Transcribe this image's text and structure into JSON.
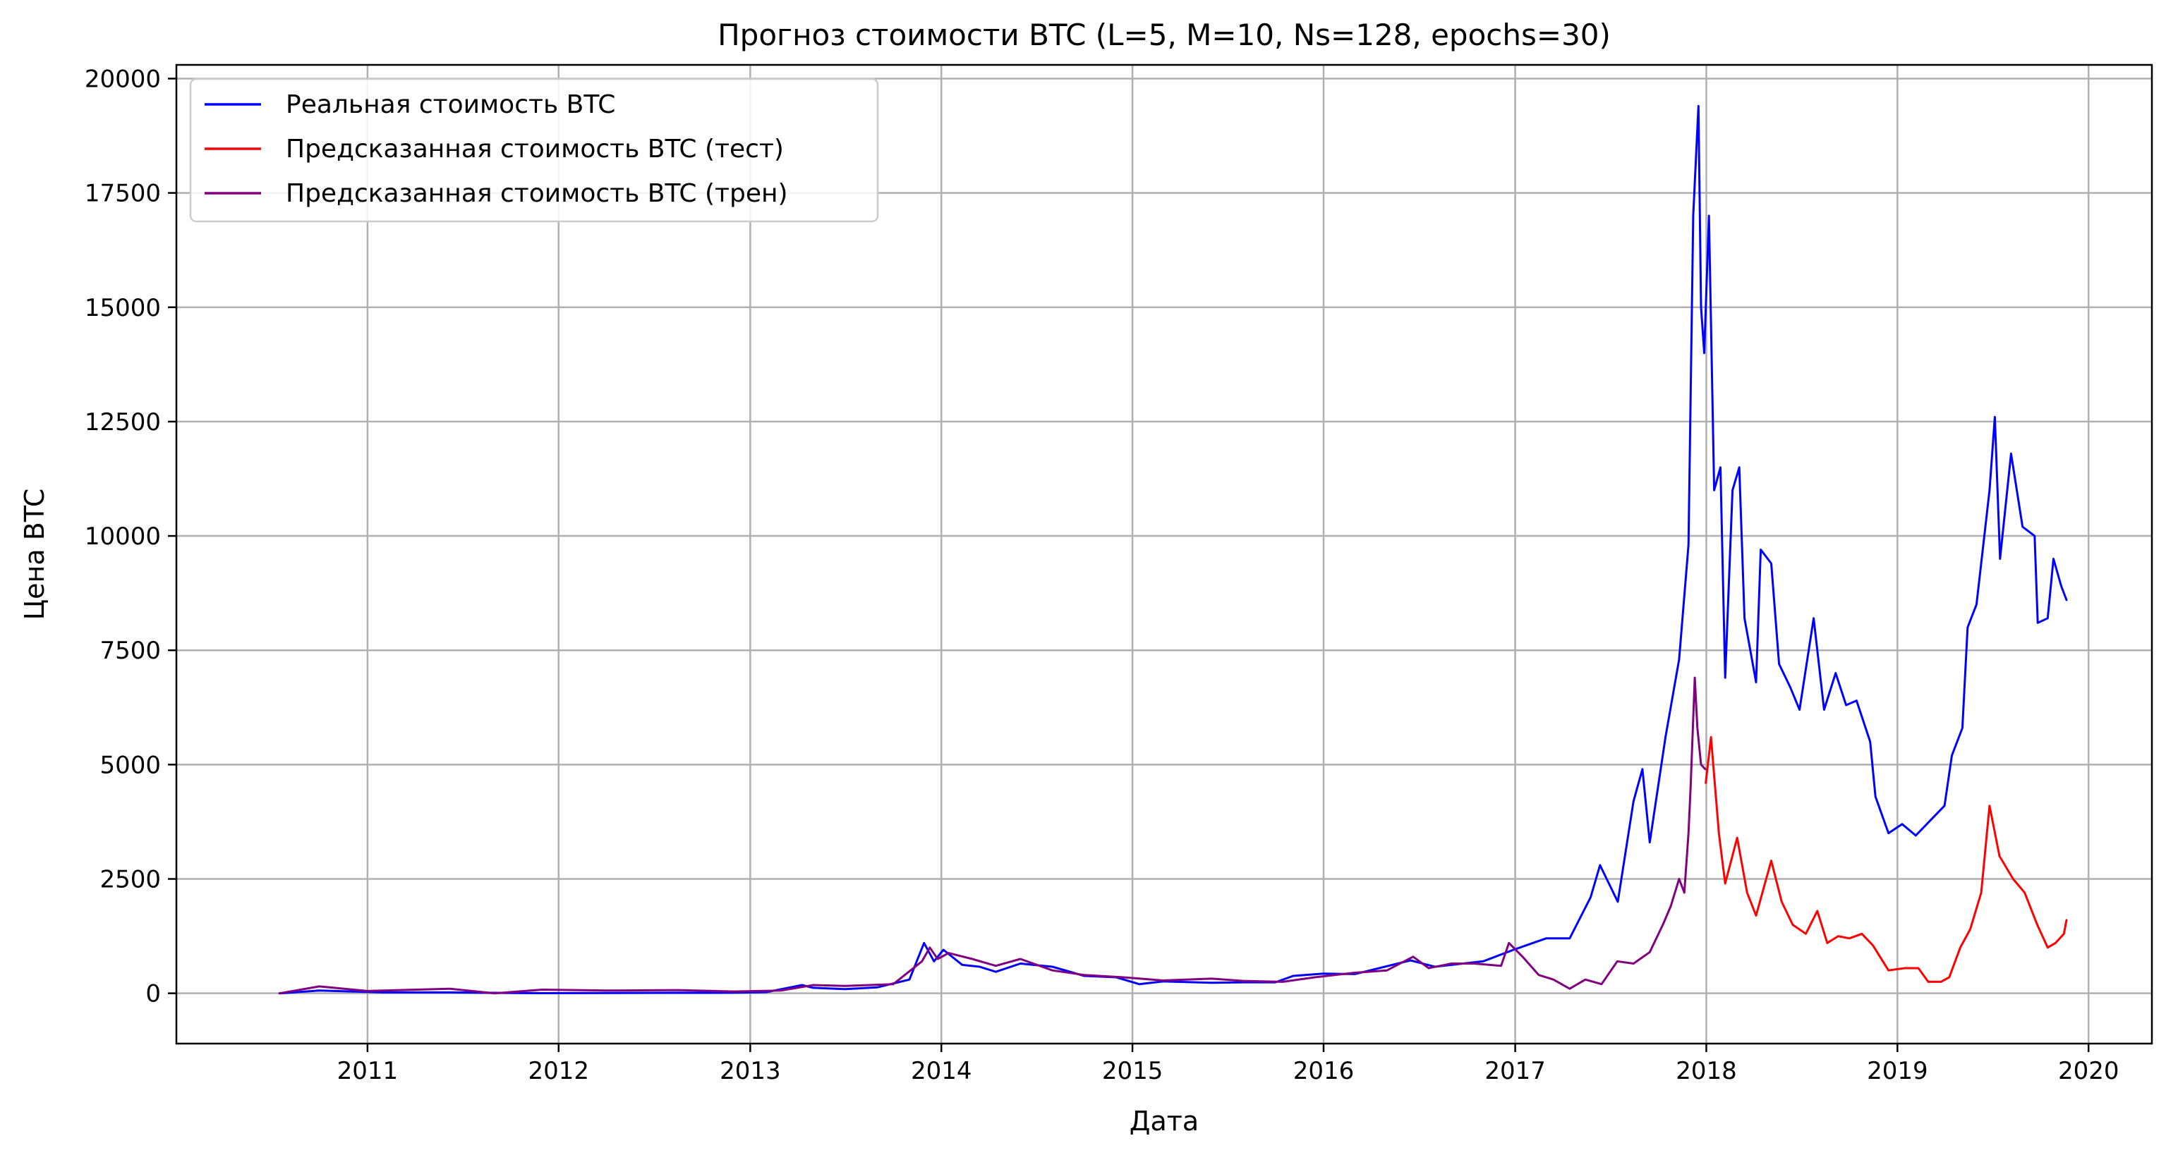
{
  "chart_data": {
    "type": "line",
    "title": "Прогноз стоимости BTC (L=5, M=10, Ns=128, epochs=30)",
    "xlabel": "Дата",
    "ylabel": "Цена BTC",
    "xlim": [
      "2010-01-01",
      "2020-05-01"
    ],
    "ylim": [
      -1100,
      20300
    ],
    "x_ticks": [
      "2011",
      "2012",
      "2013",
      "2014",
      "2015",
      "2016",
      "2017",
      "2018",
      "2019",
      "2020"
    ],
    "y_ticks": [
      "0",
      "2500",
      "5000",
      "7500",
      "10000",
      "12500",
      "15000",
      "17500",
      "20000"
    ],
    "grid": true,
    "legend_position": "top-left",
    "series": [
      {
        "name": "Реальная стоимость BTC",
        "color": "#0000ff",
        "x": [
          "2010-07-17",
          "2010-10-01",
          "2011-02-01",
          "2011-06-08",
          "2011-09-01",
          "2011-12-01",
          "2012-04-01",
          "2012-08-15",
          "2012-12-01",
          "2013-02-01",
          "2013-04-10",
          "2013-05-01",
          "2013-07-01",
          "2013-09-01",
          "2013-11-01",
          "2013-11-29",
          "2013-12-18",
          "2014-01-05",
          "2014-02-10",
          "2014-03-15",
          "2014-04-15",
          "2014-06-01",
          "2014-08-01",
          "2014-10-01",
          "2014-12-01",
          "2015-01-14",
          "2015-03-01",
          "2015-06-01",
          "2015-08-01",
          "2015-10-01",
          "2015-11-04",
          "2016-01-01",
          "2016-03-01",
          "2016-06-15",
          "2016-08-01",
          "2016-11-01",
          "2016-12-31",
          "2017-03-01",
          "2017-04-15",
          "2017-05-25",
          "2017-06-12",
          "2017-07-16",
          "2017-08-15",
          "2017-09-01",
          "2017-09-15",
          "2017-10-15",
          "2017-11-10",
          "2017-11-28",
          "2017-12-07",
          "2017-12-17",
          "2017-12-22",
          "2017-12-28",
          "2018-01-06",
          "2018-01-16",
          "2018-01-28",
          "2018-02-06",
          "2018-02-20",
          "2018-03-05",
          "2018-03-15",
          "2018-04-06",
          "2018-04-15",
          "2018-05-05",
          "2018-05-20",
          "2018-06-10",
          "2018-06-28",
          "2018-07-25",
          "2018-08-14",
          "2018-09-05",
          "2018-09-25",
          "2018-10-15",
          "2018-11-10",
          "2018-11-20",
          "2018-12-15",
          "2019-01-10",
          "2019-02-05",
          "2019-03-15",
          "2019-04-01",
          "2019-04-15",
          "2019-05-05",
          "2019-05-15",
          "2019-06-01",
          "2019-06-26",
          "2019-07-06",
          "2019-07-16",
          "2019-08-06",
          "2019-08-28",
          "2019-09-20",
          "2019-09-26",
          "2019-10-15",
          "2019-10-26",
          "2019-11-10",
          "2019-11-20"
        ],
        "values": [
          0,
          60,
          20,
          20,
          10,
          3,
          5,
          12,
          13,
          25,
          180,
          120,
          90,
          130,
          300,
          1100,
          700,
          950,
          620,
          580,
          470,
          650,
          580,
          380,
          350,
          200,
          260,
          230,
          240,
          240,
          380,
          430,
          420,
          720,
          580,
          700,
          960,
          1200,
          1200,
          2100,
          2800,
          2000,
          4200,
          4900,
          3300,
          5600,
          7300,
          9800,
          17000,
          19400,
          15000,
          14000,
          17000,
          11000,
          11500,
          6900,
          11000,
          11500,
          8200,
          6800,
          9700,
          9400,
          7200,
          6700,
          6200,
          8200,
          6200,
          7000,
          6300,
          6400,
          5500,
          4300,
          3500,
          3700,
          3450,
          3900,
          4100,
          5200,
          5800,
          8000,
          8500,
          11000,
          12600,
          9500,
          11800,
          10200,
          10000,
          8100,
          8200,
          9500,
          8900,
          8600
        ]
      },
      {
        "name": "Предсказанная стоимость BTC (тест)",
        "color": "#ff0000",
        "x": [
          "2017-12-31",
          "2018-01-10",
          "2018-01-25",
          "2018-02-06",
          "2018-03-01",
          "2018-03-20",
          "2018-04-06",
          "2018-05-05",
          "2018-05-25",
          "2018-06-15",
          "2018-07-10",
          "2018-08-01",
          "2018-08-20",
          "2018-09-10",
          "2018-10-01",
          "2018-10-25",
          "2018-11-15",
          "2018-12-15",
          "2019-01-15",
          "2019-02-10",
          "2019-03-01",
          "2019-03-25",
          "2019-04-10",
          "2019-05-01",
          "2019-05-20",
          "2019-06-10",
          "2019-06-26",
          "2019-07-15",
          "2019-08-10",
          "2019-09-01",
          "2019-09-25",
          "2019-10-15",
          "2019-10-30",
          "2019-11-15",
          "2019-11-20"
        ],
        "values": [
          4600,
          5600,
          3500,
          2400,
          3400,
          2200,
          1700,
          2900,
          2000,
          1500,
          1300,
          1800,
          1100,
          1250,
          1200,
          1300,
          1050,
          500,
          550,
          550,
          250,
          250,
          350,
          1000,
          1400,
          2200,
          4100,
          3000,
          2500,
          2200,
          1500,
          1000,
          1100,
          1300,
          1600
        ]
      },
      {
        "name": "Предсказанная стоимость BTC (трен)",
        "color": "#800080",
        "x": [
          "2010-07-17",
          "2010-10-01",
          "2011-01-01",
          "2011-06-08",
          "2011-09-01",
          "2011-12-01",
          "2012-04-01",
          "2012-08-15",
          "2012-12-01",
          "2013-03-01",
          "2013-05-01",
          "2013-07-01",
          "2013-10-01",
          "2013-11-25",
          "2013-12-10",
          "2013-12-25",
          "2014-01-15",
          "2014-03-01",
          "2014-04-15",
          "2014-06-01",
          "2014-08-01",
          "2014-10-01",
          "2014-12-15",
          "2015-03-01",
          "2015-06-01",
          "2015-08-01",
          "2015-10-15",
          "2015-12-15",
          "2016-03-01",
          "2016-05-01",
          "2016-06-20",
          "2016-07-20",
          "2016-09-01",
          "2016-10-15",
          "2016-12-05",
          "2016-12-20",
          "2017-01-15",
          "2017-02-15",
          "2017-03-15",
          "2017-04-15",
          "2017-05-15",
          "2017-06-15",
          "2017-07-15",
          "2017-08-15",
          "2017-09-15",
          "2017-10-10",
          "2017-10-25",
          "2017-11-10",
          "2017-11-20",
          "2017-11-28",
          "2017-12-02",
          "2017-12-10",
          "2017-12-15",
          "2017-12-22",
          "2017-12-30"
        ],
        "values": [
          0,
          150,
          50,
          100,
          0,
          80,
          60,
          70,
          40,
          60,
          180,
          160,
          200,
          700,
          1000,
          750,
          880,
          750,
          600,
          750,
          500,
          400,
          350,
          280,
          320,
          270,
          250,
          350,
          450,
          500,
          800,
          550,
          650,
          650,
          600,
          1100,
          800,
          400,
          300,
          100,
          300,
          200,
          700,
          650,
          900,
          1500,
          1900,
          2500,
          2200,
          3500,
          4500,
          6900,
          5800,
          5000,
          4900
        ]
      }
    ]
  }
}
